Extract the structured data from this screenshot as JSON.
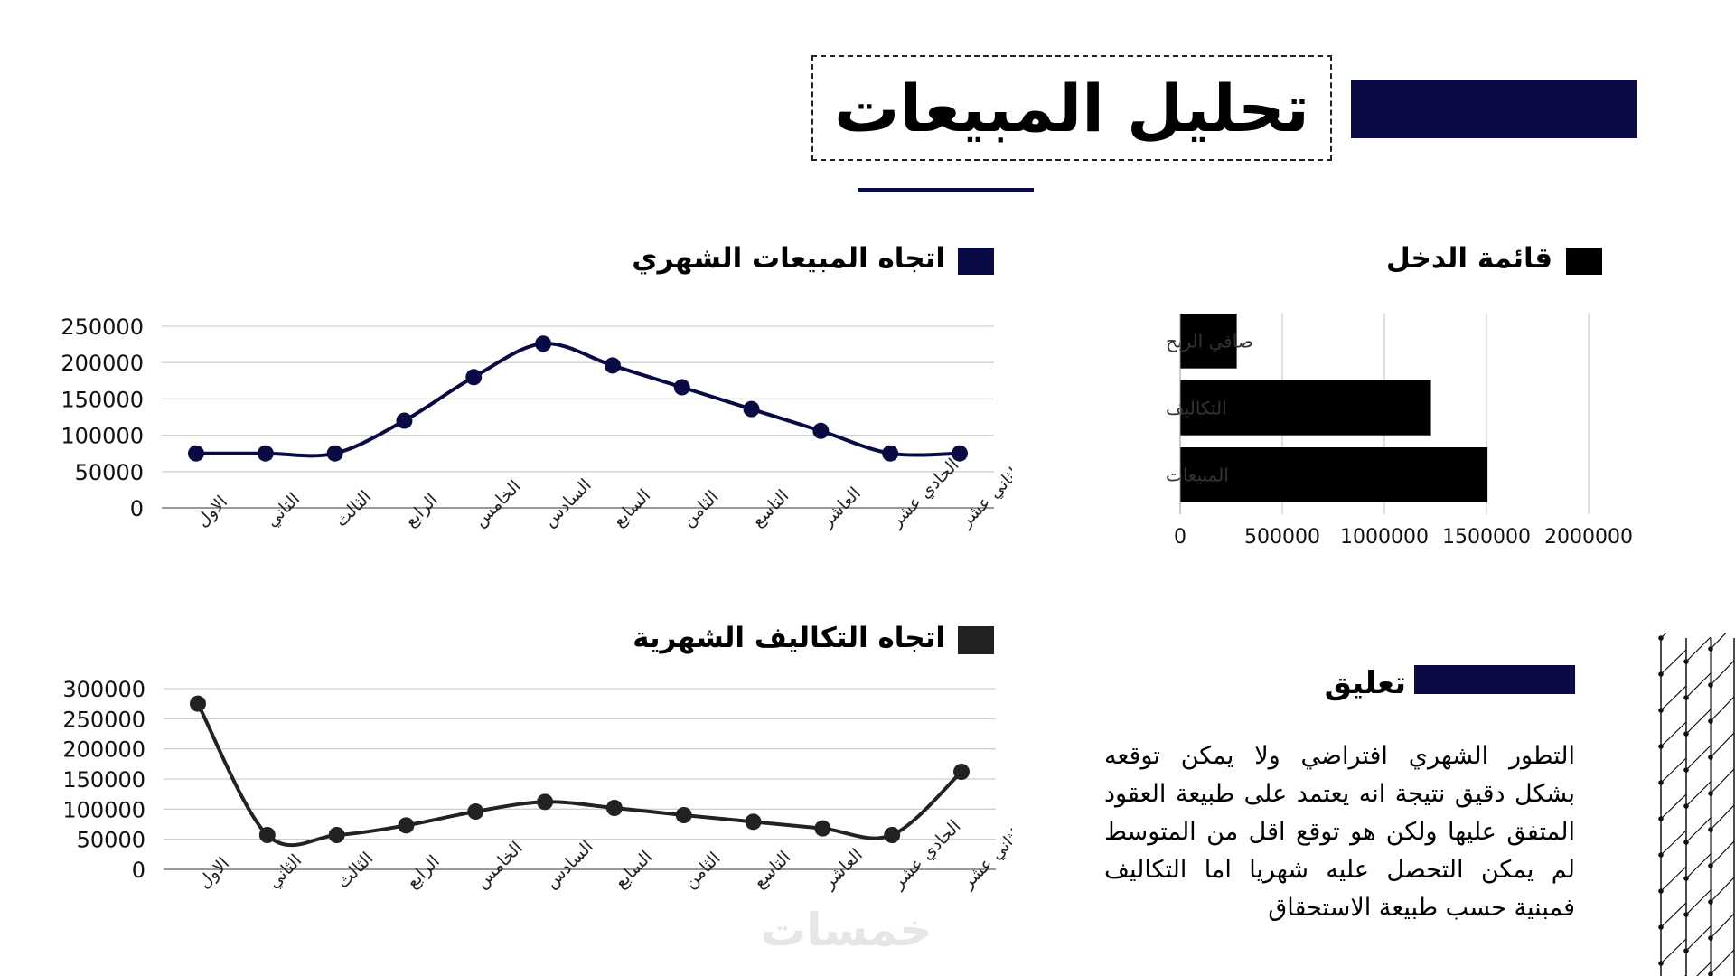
{
  "title": "تحليل المبيعات",
  "colors": {
    "navy": "#0a0a45",
    "black": "#000000",
    "dark": "#222222",
    "grid": "#d0d0d0"
  },
  "sections": {
    "sales_trend_heading": "اتجاه المبيعات الشهري",
    "income_heading": "قائمة الدخل",
    "costs_trend_heading": "اتجاه التكاليف الشهرية",
    "comment_heading": "تعليق"
  },
  "comment": {
    "text": "التطور الشهري افتراضي ولا يمكن توقعه بشكل دقيق نتيجة انه يعتمد على طبيعة العقود المتفق عليها ولكن هو توقع اقل من المتوسط لم يمكن التحصل عليه شهريا اما التكاليف فمبنية حسب طبيعة الاستحقاق"
  },
  "watermark": "خمسات",
  "chart_data": [
    {
      "type": "line",
      "title": "اتجاه المبيعات الشهري",
      "categories": [
        "الاول",
        "الثاني",
        "الثالث",
        "الرابع",
        "الخامس",
        "السادس",
        "السابع",
        "الثامن",
        "التاسع",
        "العاشر",
        "الحادي عشر",
        "الثاني عشر"
      ],
      "values": [
        75000,
        75000,
        75000,
        120000,
        180000,
        226000,
        196000,
        166000,
        136000,
        106000,
        75000,
        75000
      ],
      "ylim": [
        0,
        250000
      ],
      "yticks": [
        "0",
        "50000",
        "100000",
        "150000",
        "200000",
        "250000"
      ],
      "grid": true,
      "smooth": true,
      "color": "#0a0a45"
    },
    {
      "type": "bar",
      "orientation": "horizontal",
      "title": "قائمة الدخل",
      "categories": [
        "صافي الربح",
        "التكاليف",
        "المبيعات"
      ],
      "values": [
        277000,
        1228000,
        1505000
      ],
      "xlim": [
        0,
        2000000
      ],
      "xticks": [
        "0",
        "500000",
        "1000000",
        "1500000",
        "2000000"
      ],
      "grid": true,
      "color": "#000000"
    },
    {
      "type": "line",
      "title": "اتجاه التكاليف الشهرية",
      "categories": [
        "الاول",
        "الثاني",
        "الثالث",
        "الرابع",
        "الخامس",
        "السادس",
        "السابع",
        "الثامن",
        "التاسع",
        "العاشر",
        "الحادي عشر",
        "الثاني عشر"
      ],
      "values": [
        275000,
        57000,
        57000,
        73000,
        96000,
        112000,
        102000,
        90000,
        79000,
        68000,
        57000,
        162000
      ],
      "ylim": [
        0,
        300000
      ],
      "yticks": [
        "0",
        "50000",
        "100000",
        "150000",
        "200000",
        "250000",
        "300000"
      ],
      "grid": true,
      "smooth": true,
      "color": "#222222"
    }
  ]
}
